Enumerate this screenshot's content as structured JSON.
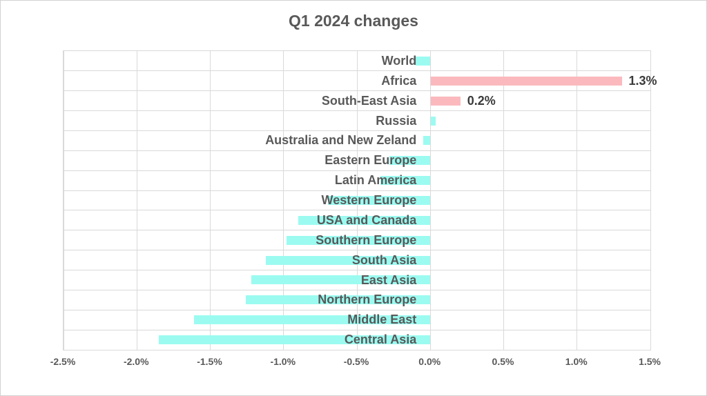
{
  "chart_data": {
    "type": "bar",
    "orientation": "horizontal",
    "title": "Q1 2024 changes",
    "unit": "%",
    "categories": [
      "World",
      "Africa",
      "South-East Asia",
      "Russia",
      "Australia and New Zeland",
      "Eastern Europe",
      "Latin America",
      "Western Europe",
      "USA and Canada",
      "Southern Europe",
      "South Asia",
      "East Asia",
      "Northern Europe",
      "Middle East",
      "Central Asia"
    ],
    "values": [
      -0.1,
      1.3,
      0.2,
      0.03,
      -0.05,
      -0.28,
      -0.34,
      -0.7,
      -0.9,
      -0.98,
      -1.12,
      -1.22,
      -1.26,
      -1.61,
      -1.85
    ],
    "data_labels": [
      "",
      "1.3%",
      "0.2%",
      "",
      "",
      "",
      "",
      "",
      "",
      "",
      "",
      "",
      "",
      "",
      ""
    ],
    "bar_colors": [
      "cyan",
      "pink",
      "pink",
      "cyan",
      "cyan",
      "cyan",
      "cyan",
      "cyan",
      "cyan",
      "cyan",
      "cyan",
      "cyan",
      "cyan",
      "cyan",
      "cyan"
    ],
    "xlim": [
      -2.5,
      1.5
    ],
    "xtick_values": [
      -2.5,
      -2.0,
      -1.5,
      -1.0,
      -0.5,
      0.0,
      0.5,
      1.0,
      1.5
    ],
    "xtick_labels": [
      "-2.5%",
      "-2.0%",
      "-1.5%",
      "-1.0%",
      "-0.5%",
      "0.0%",
      "0.5%",
      "1.0%",
      "1.5%"
    ],
    "grid": true,
    "legend": "none",
    "palette": {
      "cyan": "#9BFBF1",
      "pink": "#FBB9BE",
      "gridline": "#D9D9D9",
      "axis_text": "#595959",
      "title_text": "#595959",
      "data_label_text": "#3A3A3A",
      "background": "#FFFFFF"
    }
  }
}
